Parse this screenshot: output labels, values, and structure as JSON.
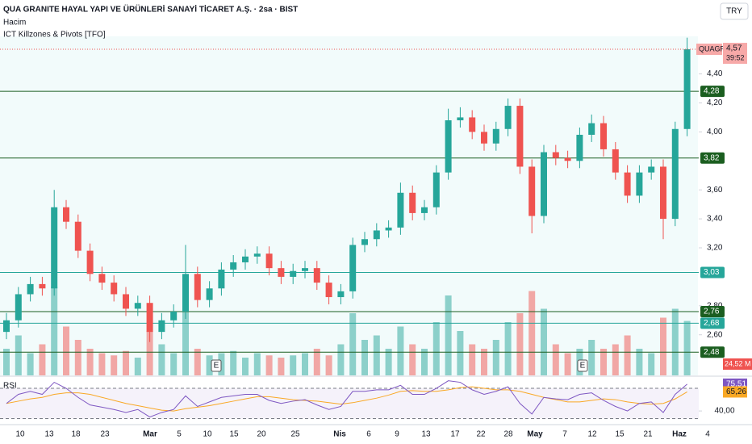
{
  "chart_data": {
    "type": "candlestick",
    "title": "QUA GRANITE HAYAL YAPI VE ÜRÜNLERİ SANAYİ TİCARET A.Ş. · 2sa · BIST",
    "indicators": [
      "Hacim",
      "ICT Killzones & Pivots [TFO]"
    ],
    "currency": "TRY",
    "symbol": "QUAGR",
    "countdown": "39:52",
    "x_labels": [
      "10",
      "13",
      "18",
      "23",
      "Mar",
      "5",
      "10",
      "15",
      "20",
      "25",
      "Nis",
      "6",
      "9",
      "13",
      "17",
      "22",
      "28",
      "May",
      "7",
      "12",
      "15",
      "21",
      "Haz",
      "4"
    ],
    "ylim": [
      2.32,
      4.91
    ],
    "yticks": [
      {
        "value": 4.4,
        "label": "4,40"
      },
      {
        "value": 4.2,
        "label": "4,20"
      },
      {
        "value": 4.0,
        "label": "4,00"
      },
      {
        "value": 3.6,
        "label": "3,60"
      },
      {
        "value": 3.4,
        "label": "3,40"
      },
      {
        "value": 3.2,
        "label": "3,20"
      },
      {
        "value": 2.8,
        "label": "2,80"
      },
      {
        "value": 2.6,
        "label": "2,60"
      }
    ],
    "up_color": "#26a69a",
    "down_color": "#ef5350",
    "series": {
      "open": [
        2.62,
        2.7,
        2.88,
        2.95,
        2.92,
        3.48,
        3.38,
        3.18,
        3.02,
        2.96,
        2.88,
        2.78,
        2.82,
        2.62,
        2.7,
        2.76,
        3.02,
        2.84,
        2.92,
        3.05,
        3.1,
        3.14,
        3.16,
        3.06,
        3.0,
        3.04,
        3.06,
        2.96,
        2.86,
        2.9,
        3.22,
        3.26,
        3.32,
        3.34,
        3.58,
        3.44,
        3.48,
        3.72,
        4.08,
        4.1,
        4.0,
        3.92,
        4.02,
        4.18,
        3.76,
        3.42,
        3.86,
        3.82,
        3.8,
        3.98,
        4.06,
        3.88,
        3.72,
        3.56,
        3.72,
        3.76,
        3.4,
        4.02
      ],
      "high": [
        2.75,
        2.93,
        3.0,
        3.0,
        3.6,
        3.53,
        3.43,
        3.23,
        3.07,
        3.01,
        2.93,
        2.87,
        2.87,
        2.75,
        2.81,
        3.22,
        3.07,
        2.97,
        3.1,
        3.15,
        3.19,
        3.21,
        3.21,
        3.11,
        3.09,
        3.11,
        3.11,
        3.01,
        2.95,
        3.27,
        3.31,
        3.37,
        3.39,
        3.65,
        3.63,
        3.53,
        3.77,
        4.16,
        4.17,
        4.15,
        4.05,
        4.07,
        4.23,
        4.23,
        3.81,
        3.91,
        3.91,
        3.87,
        4.03,
        4.12,
        4.11,
        3.93,
        3.77,
        3.77,
        3.81,
        3.81,
        4.07,
        4.65
      ],
      "low": [
        2.57,
        2.65,
        2.83,
        2.87,
        2.87,
        3.33,
        3.13,
        2.97,
        2.91,
        2.83,
        2.73,
        2.73,
        2.55,
        2.57,
        2.65,
        2.71,
        2.79,
        2.79,
        2.87,
        3.0,
        3.05,
        3.09,
        3.01,
        2.95,
        2.95,
        2.99,
        2.91,
        2.81,
        2.81,
        2.85,
        3.17,
        3.21,
        3.27,
        3.29,
        3.39,
        3.39,
        3.43,
        3.67,
        4.03,
        3.95,
        3.87,
        3.87,
        3.97,
        3.71,
        3.3,
        3.37,
        3.77,
        3.75,
        3.75,
        3.93,
        3.83,
        3.67,
        3.51,
        3.51,
        3.67,
        3.26,
        3.35,
        3.97
      ],
      "close": [
        2.7,
        2.88,
        2.95,
        2.92,
        3.48,
        3.38,
        3.18,
        3.02,
        2.96,
        2.88,
        2.78,
        2.82,
        2.62,
        2.7,
        2.76,
        3.02,
        2.84,
        2.92,
        3.05,
        3.1,
        3.14,
        3.16,
        3.06,
        3.0,
        3.04,
        3.06,
        2.96,
        2.86,
        2.9,
        3.22,
        3.26,
        3.32,
        3.34,
        3.58,
        3.44,
        3.48,
        3.72,
        4.08,
        4.1,
        4.0,
        3.92,
        4.02,
        4.18,
        3.76,
        3.42,
        3.86,
        3.82,
        3.8,
        3.98,
        4.06,
        3.88,
        3.72,
        3.56,
        3.72,
        3.76,
        3.4,
        4.02,
        4.57
      ]
    },
    "last_price": {
      "value": 4.57,
      "label": "4,57"
    },
    "levels": [
      {
        "value": 4.28,
        "label": "4,28",
        "color": "#1b5e20"
      },
      {
        "value": 3.82,
        "label": "3,82",
        "color": "#1b5e20"
      },
      {
        "value": 3.03,
        "label": "3,03",
        "color": "#26a69a"
      },
      {
        "value": 2.76,
        "label": "2,76",
        "color": "#1b5e20"
      },
      {
        "value": 2.68,
        "label": "2,68",
        "color": "#26a69a"
      },
      {
        "value": 2.48,
        "label": "2,48",
        "color": "#1b5e20"
      }
    ],
    "volume": {
      "values": [
        12,
        18,
        10,
        14,
        40,
        22,
        16,
        12,
        10,
        9,
        11,
        8,
        20,
        14,
        10,
        30,
        12,
        9,
        10,
        11,
        8,
        10,
        9,
        8,
        9,
        10,
        12,
        9,
        14,
        28,
        16,
        18,
        12,
        22,
        14,
        12,
        24,
        36,
        20,
        14,
        12,
        16,
        24,
        28,
        38,
        30,
        14,
        10,
        12,
        16,
        12,
        14,
        18,
        12,
        10,
        26,
        30,
        24.52
      ],
      "value_label": "24,52 M"
    },
    "earnings": [
      "E",
      "E"
    ],
    "rsi": {
      "title": "RSI",
      "ylim": [
        23,
        85
      ],
      "yticks": [
        {
          "value": 40,
          "label": "40,00"
        }
      ],
      "bands": [
        30,
        70
      ],
      "color": "#7e57c2",
      "ma_color": "#f9a825",
      "values": [
        50,
        62,
        66,
        62,
        78,
        70,
        58,
        48,
        45,
        42,
        38,
        42,
        32,
        38,
        42,
        60,
        46,
        52,
        58,
        60,
        62,
        62,
        54,
        50,
        53,
        55,
        48,
        42,
        46,
        66,
        66,
        68,
        68,
        74,
        62,
        62,
        70,
        80,
        78,
        68,
        62,
        66,
        72,
        50,
        36,
        58,
        56,
        55,
        62,
        64,
        54,
        46,
        40,
        50,
        52,
        38,
        62,
        75.51
      ],
      "value_label": "75,51",
      "ma": [
        50,
        53,
        56,
        58,
        62,
        64,
        64,
        62,
        58,
        54,
        50,
        47,
        44,
        41,
        40,
        43,
        45,
        47,
        50,
        53,
        56,
        59,
        59,
        57,
        55,
        54,
        53,
        51,
        49,
        51,
        54,
        57,
        61,
        66,
        67,
        66,
        66,
        68,
        71,
        72,
        70,
        68,
        68,
        66,
        62,
        58,
        55,
        52,
        52,
        54,
        56,
        55,
        52,
        50,
        49,
        50,
        56,
        65.26
      ],
      "ma_label": "65,26"
    }
  }
}
